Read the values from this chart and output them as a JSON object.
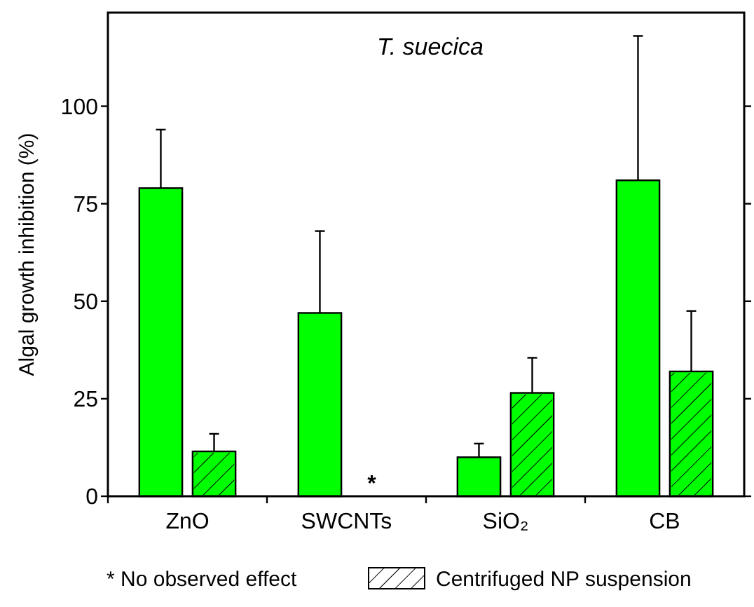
{
  "chart_data": {
    "type": "bar",
    "title": "T. suecica",
    "ylabel": "Algal growth inhibition (%)",
    "categories": [
      "ZnO",
      "SWCNTs",
      "SiO₂",
      "CB"
    ],
    "series": [
      {
        "color": "#00ff00",
        "values": [
          79,
          47,
          10,
          81
        ],
        "errors": [
          [
            79,
            94
          ],
          [
            47,
            68
          ],
          [
            10,
            13.5
          ],
          [
            81,
            118
          ]
        ]
      },
      {
        "name": "Centrifuged NP suspension",
        "color": "#00ff00",
        "values": [
          11.5,
          null,
          26.5,
          32
        ],
        "errors": [
          [
            11.5,
            16
          ],
          null,
          [
            26.5,
            35.5
          ],
          [
            32,
            47.5
          ]
        ]
      }
    ],
    "ylim": [
      0,
      124
    ],
    "yticks": [
      0,
      25,
      50,
      75,
      100
    ],
    "grid": false,
    "legend": "bottom",
    "annotations": [
      {
        "text": "*",
        "x": "SWCNTs",
        "y": 0
      },
      "* No observed effect"
    ]
  }
}
